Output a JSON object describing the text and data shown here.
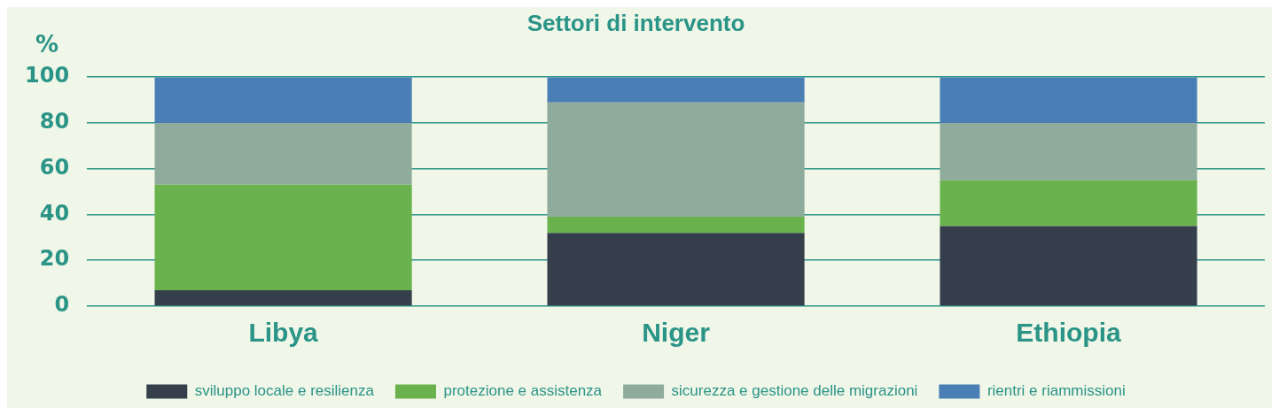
{
  "chart_data": {
    "type": "bar",
    "title": "Settori di intervento",
    "ylabel": "%",
    "categories": [
      "Libya",
      "Niger",
      "Ethiopia"
    ],
    "stacked": true,
    "ylim": [
      0,
      100
    ],
    "yticks": [
      0,
      20,
      40,
      60,
      80,
      100
    ],
    "grid": "y",
    "legend": "bottom",
    "series": [
      {
        "name": "sviluppo locale e resilienza",
        "color": "#353f4c",
        "values": [
          7,
          32,
          35
        ]
      },
      {
        "name": "protezione e assistenza",
        "color": "#6ab24d",
        "values": [
          46,
          7,
          20
        ]
      },
      {
        "name": "sicurezza e gestione delle migrazioni",
        "color": "#8fab9c",
        "values": [
          27,
          50,
          25
        ]
      },
      {
        "name": "rientri e riammissioni",
        "color": "#4a7fb5",
        "values": [
          20,
          11,
          20
        ]
      }
    ]
  }
}
